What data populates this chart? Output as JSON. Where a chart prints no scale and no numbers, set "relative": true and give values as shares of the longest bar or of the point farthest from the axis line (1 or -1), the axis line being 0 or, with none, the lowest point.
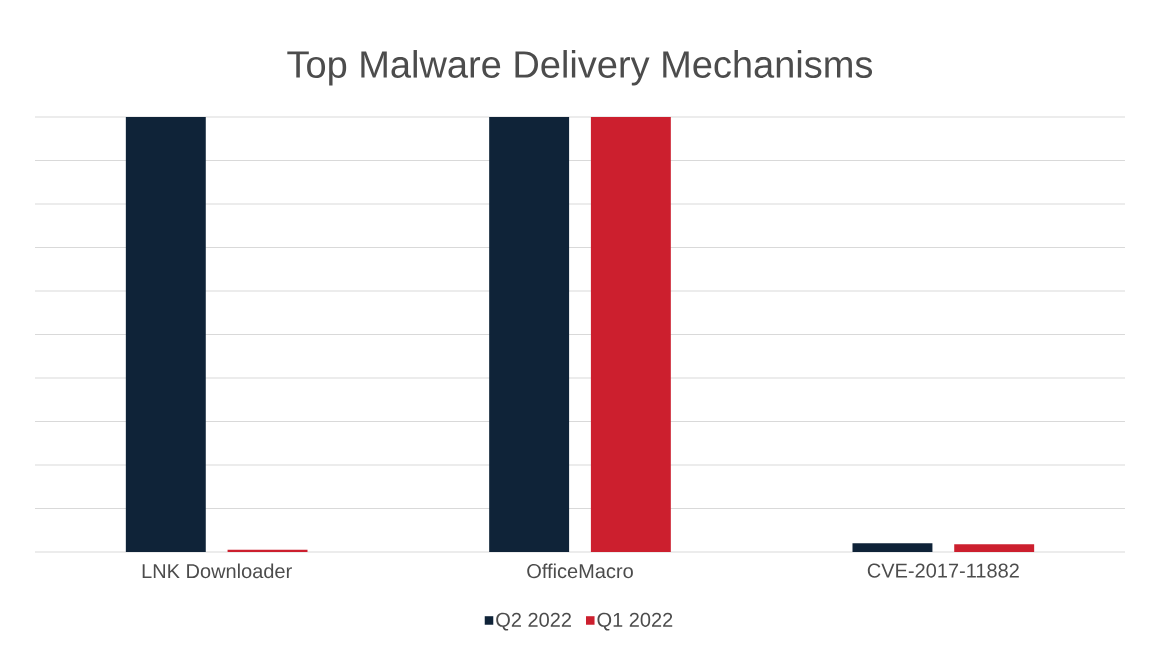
{
  "chart_data": {
    "type": "bar",
    "title": "Top Malware Delivery Mechanisms",
    "categories": [
      "LNK Downloader",
      "OfficeMacro",
      "CVE-2017-11882"
    ],
    "series": [
      {
        "name": "Q2 2022",
        "color": "#0f2338",
        "values": [
          1,
          1,
          0.02
        ]
      },
      {
        "name": "Q1 2022",
        "color": "#cc1f2e",
        "values": [
          0.005,
          1,
          0.018
        ]
      }
    ],
    "relative": true,
    "grid": "y",
    "legend": "bottom"
  }
}
